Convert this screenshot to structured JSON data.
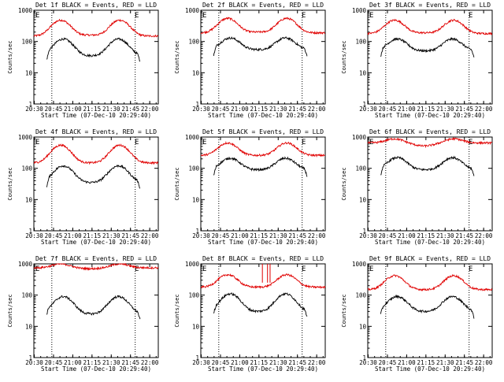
{
  "figure": {
    "type": "multi-panel line plot grid",
    "events_color": "#000000",
    "lld_color": "#e00000"
  },
  "chart_data": [
    {
      "type": "line",
      "title": "Det 1f BLACK = Events, RED = LLD",
      "xlabel": "Start Time (07-Dec-10 20:29:40)",
      "ylabel": "Counts/sec",
      "y_scale": "log",
      "ylim": [
        1,
        1000
      ],
      "y_tick_labels": [
        "1",
        "10",
        "100",
        "1000"
      ],
      "x_range_minutes": [
        0,
        97
      ],
      "x_tick_labels": [
        "20:30",
        "20:45",
        "21:00",
        "21:15",
        "21:30",
        "21:45",
        "22:00"
      ],
      "dotted_vlines_minutes": [
        14,
        79
      ],
      "corner_marks": [
        "E",
        "E"
      ],
      "lld_base": 150,
      "lld_peak": 480,
      "lld_dip": 160,
      "events_base": 60,
      "events_peak": 120,
      "events_dip": 35,
      "spikes": false,
      "series": [
        {
          "name": "Events",
          "color": "#000000"
        },
        {
          "name": "LLD",
          "color": "#e00000"
        }
      ]
    },
    {
      "type": "line",
      "title": "Det 2f BLACK = Events, RED = LLD",
      "xlabel": "Start Time (07-Dec-10 20:29:40)",
      "ylabel": "Counts/sec",
      "y_scale": "log",
      "ylim": [
        1,
        1000
      ],
      "y_tick_labels": [
        "1",
        "10",
        "100",
        "1000"
      ],
      "x_range_minutes": [
        0,
        97
      ],
      "x_tick_labels": [
        "20:30",
        "20:45",
        "21:00",
        "21:15",
        "21:30",
        "21:45",
        "22:00"
      ],
      "dotted_vlines_minutes": [
        14,
        79
      ],
      "corner_marks": [
        "E",
        "E"
      ],
      "lld_base": 190,
      "lld_peak": 550,
      "lld_dip": 200,
      "events_base": 70,
      "events_peak": 130,
      "events_dip": 55,
      "spikes": false,
      "series": [
        {
          "name": "Events",
          "color": "#000000"
        },
        {
          "name": "LLD",
          "color": "#e00000"
        }
      ]
    },
    {
      "type": "line",
      "title": "Det 3f BLACK = Events, RED = LLD",
      "xlabel": "Start Time (07-Dec-10 20:29:40)",
      "ylabel": "Counts/sec",
      "y_scale": "log",
      "ylim": [
        1,
        1000
      ],
      "y_tick_labels": [
        "1",
        "10",
        "100",
        "1000"
      ],
      "x_range_minutes": [
        0,
        97
      ],
      "x_tick_labels": [
        "20:30",
        "20:45",
        "21:00",
        "21:15",
        "21:30",
        "21:45",
        "22:00"
      ],
      "dotted_vlines_minutes": [
        14,
        79
      ],
      "corner_marks": [
        "E",
        "E"
      ],
      "lld_base": 180,
      "lld_peak": 480,
      "lld_dip": 190,
      "events_base": 70,
      "events_peak": 120,
      "events_dip": 50,
      "spikes": false,
      "series": [
        {
          "name": "Events",
          "color": "#000000"
        },
        {
          "name": "LLD",
          "color": "#e00000"
        }
      ]
    },
    {
      "type": "line",
      "title": "Det 4f BLACK = Events, RED = LLD",
      "xlabel": "Start Time (07-Dec-10 20:29:40)",
      "ylabel": "Counts/sec",
      "y_scale": "log",
      "ylim": [
        1,
        1000
      ],
      "y_tick_labels": [
        "1",
        "10",
        "100",
        "1000"
      ],
      "x_range_minutes": [
        0,
        97
      ],
      "x_tick_labels": [
        "20:30",
        "20:45",
        "21:00",
        "21:15",
        "21:30",
        "21:45",
        "22:00"
      ],
      "dotted_vlines_minutes": [
        14,
        79
      ],
      "corner_marks": [
        "E",
        "E"
      ],
      "lld_base": 150,
      "lld_peak": 550,
      "lld_dip": 150,
      "events_base": 60,
      "events_peak": 120,
      "events_dip": 35,
      "spikes": false,
      "series": [
        {
          "name": "Events",
          "color": "#000000"
        },
        {
          "name": "LLD",
          "color": "#e00000"
        }
      ]
    },
    {
      "type": "line",
      "title": "Det 5f BLACK = Events, RED = LLD",
      "xlabel": "Start Time (07-Dec-10 20:29:40)",
      "ylabel": "Counts/sec",
      "y_scale": "log",
      "ylim": [
        1,
        1000
      ],
      "y_tick_labels": [
        "1",
        "10",
        "100",
        "1000"
      ],
      "x_range_minutes": [
        0,
        97
      ],
      "x_tick_labels": [
        "20:30",
        "20:45",
        "21:00",
        "21:15",
        "21:30",
        "21:45",
        "22:00"
      ],
      "dotted_vlines_minutes": [
        14,
        79
      ],
      "corner_marks": [
        "E",
        "E"
      ],
      "lld_base": 260,
      "lld_peak": 650,
      "lld_dip": 260,
      "events_base": 120,
      "events_peak": 210,
      "events_dip": 90,
      "spikes": false,
      "series": [
        {
          "name": "Events",
          "color": "#000000"
        },
        {
          "name": "LLD",
          "color": "#e00000"
        }
      ]
    },
    {
      "type": "line",
      "title": "Det 6f BLACK = Events, RED = LLD",
      "xlabel": "Start Time (07-Dec-10 20:29:40)",
      "ylabel": "Counts/sec",
      "y_scale": "log",
      "ylim": [
        1,
        1000
      ],
      "y_tick_labels": [
        "1",
        "10",
        "100",
        "1000"
      ],
      "x_range_minutes": [
        0,
        97
      ],
      "x_tick_labels": [
        "20:30",
        "20:45",
        "21:00",
        "21:15",
        "21:30",
        "21:45",
        "22:00"
      ],
      "dotted_vlines_minutes": [
        14,
        79
      ],
      "corner_marks": [
        "E",
        "E"
      ],
      "lld_base": 650,
      "lld_peak": 880,
      "lld_dip": 520,
      "events_base": 130,
      "events_peak": 220,
      "events_dip": 90,
      "spikes": false,
      "series": [
        {
          "name": "Events",
          "color": "#000000"
        },
        {
          "name": "LLD",
          "color": "#e00000"
        }
      ]
    },
    {
      "type": "line",
      "title": "Det 7f BLACK = Events, RED = LLD",
      "xlabel": "Start Time (07-Dec-10 20:29:40)",
      "ylabel": "Counts/sec",
      "y_scale": "log",
      "ylim": [
        1,
        1000
      ],
      "y_tick_labels": [
        "1",
        "10",
        "100",
        "1000"
      ],
      "x_range_minutes": [
        0,
        97
      ],
      "x_tick_labels": [
        "20:30",
        "20:45",
        "21:00",
        "21:15",
        "21:30",
        "21:45",
        "22:00"
      ],
      "dotted_vlines_minutes": [
        14,
        79
      ],
      "corner_marks": [
        "E",
        "E"
      ],
      "lld_base": 750,
      "lld_peak": 1000,
      "lld_dip": 700,
      "events_base": 55,
      "events_peak": 90,
      "events_dip": 25,
      "spikes": false,
      "series": [
        {
          "name": "Events",
          "color": "#000000"
        },
        {
          "name": "LLD",
          "color": "#e00000"
        }
      ]
    },
    {
      "type": "line",
      "title": "Det 8f BLACK = Events, RED = LLD",
      "xlabel": "Start Time (07-Dec-10 20:29:40)",
      "ylabel": "Counts/sec",
      "y_scale": "log",
      "ylim": [
        1,
        1000
      ],
      "y_tick_labels": [
        "1",
        "10",
        "100",
        "1000"
      ],
      "x_range_minutes": [
        0,
        97
      ],
      "x_tick_labels": [
        "20:30",
        "20:45",
        "21:00",
        "21:15",
        "21:30",
        "21:45",
        "22:00"
      ],
      "dotted_vlines_minutes": [
        14,
        79
      ],
      "corner_marks": [
        "E",
        "E"
      ],
      "lld_base": 180,
      "lld_peak": 450,
      "lld_dip": 180,
      "events_base": 60,
      "events_peak": 110,
      "events_dip": 30,
      "spikes": true,
      "series": [
        {
          "name": "Events",
          "color": "#000000"
        },
        {
          "name": "LLD",
          "color": "#e00000"
        }
      ]
    },
    {
      "type": "line",
      "title": "Det 9f BLACK = Events, RED = LLD",
      "xlabel": "Start Time (07-Dec-10 20:29:40)",
      "ylabel": "Counts/sec",
      "y_scale": "log",
      "ylim": [
        1,
        1000
      ],
      "y_tick_labels": [
        "1",
        "10",
        "100",
        "1000"
      ],
      "x_range_minutes": [
        0,
        97
      ],
      "x_tick_labels": [
        "20:30",
        "20:45",
        "21:00",
        "21:15",
        "21:30",
        "21:45",
        "22:00"
      ],
      "dotted_vlines_minutes": [
        14,
        79
      ],
      "corner_marks": [
        "E",
        "E"
      ],
      "lld_base": 150,
      "lld_peak": 420,
      "lld_dip": 150,
      "events_base": 55,
      "events_peak": 90,
      "events_dip": 30,
      "spikes": false,
      "series": [
        {
          "name": "Events",
          "color": "#000000"
        },
        {
          "name": "LLD",
          "color": "#e00000"
        }
      ]
    }
  ]
}
